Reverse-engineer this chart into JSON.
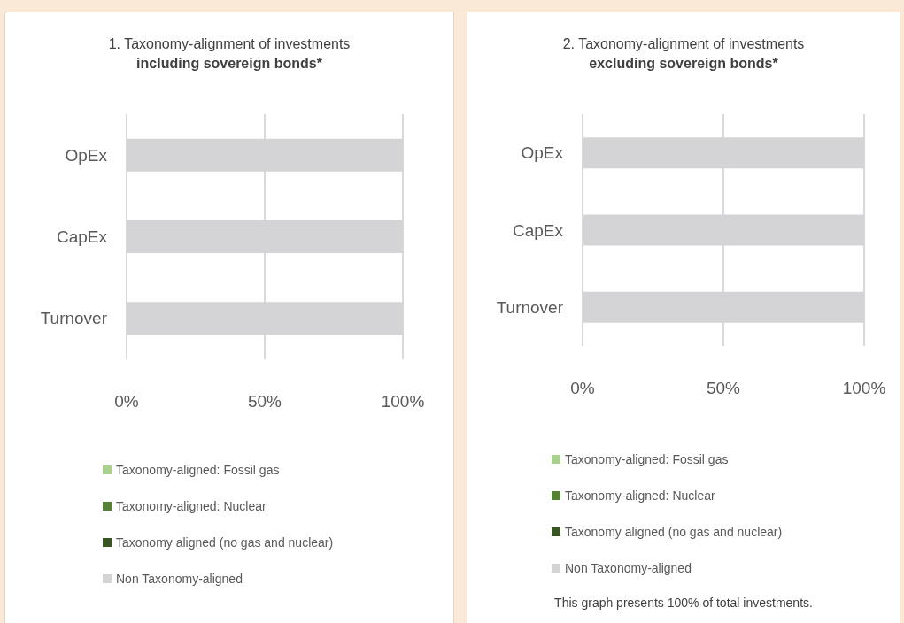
{
  "chart_data": [
    {
      "type": "bar",
      "title": "1. Taxonomy-alignment of investments",
      "subtitle": "including sovereign bonds*",
      "orientation": "horizontal",
      "stacked": true,
      "categories": [
        "OpEx",
        "CapEx",
        "Turnover"
      ],
      "series": [
        {
          "name": "Taxonomy-aligned: Fossil gas",
          "color": "#a9d18e",
          "values": [
            0,
            0,
            0
          ]
        },
        {
          "name": "Taxonomy-aligned: Nuclear",
          "color": "#548235",
          "values": [
            0,
            0,
            0
          ]
        },
        {
          "name": "Taxonomy aligned (no gas and nuclear)",
          "color": "#375623",
          "values": [
            0,
            0,
            0
          ]
        },
        {
          "name": "Non Taxonomy-aligned",
          "color": "#d4d4d6",
          "values": [
            100,
            100,
            100
          ]
        }
      ],
      "xlim": [
        0,
        100
      ],
      "xticks": [
        {
          "value": 0,
          "label": "0%"
        },
        {
          "value": 50,
          "label": "50%"
        },
        {
          "value": 100,
          "label": "100%"
        }
      ],
      "grid": "x",
      "legend": "bottom"
    },
    {
      "type": "bar",
      "title": "2. Taxonomy-alignment of investments",
      "subtitle": "excluding sovereign bonds*",
      "orientation": "horizontal",
      "stacked": true,
      "categories": [
        "OpEx",
        "CapEx",
        "Turnover"
      ],
      "series": [
        {
          "name": "Taxonomy-aligned: Fossil gas",
          "color": "#a9d18e",
          "values": [
            0,
            0,
            0
          ]
        },
        {
          "name": "Taxonomy-aligned: Nuclear",
          "color": "#548235",
          "values": [
            0,
            0,
            0
          ]
        },
        {
          "name": "Taxonomy aligned (no gas and nuclear)",
          "color": "#375623",
          "values": [
            0,
            0,
            0
          ]
        },
        {
          "name": "Non Taxonomy-aligned",
          "color": "#d4d4d6",
          "values": [
            100,
            100,
            100
          ]
        }
      ],
      "xlim": [
        0,
        100
      ],
      "xticks": [
        {
          "value": 0,
          "label": "0%"
        },
        {
          "value": 50,
          "label": "50%"
        },
        {
          "value": 100,
          "label": "100%"
        }
      ],
      "grid": "x",
      "legend": "bottom",
      "annotations": [
        "This graph presents 100% of total investments."
      ]
    }
  ]
}
